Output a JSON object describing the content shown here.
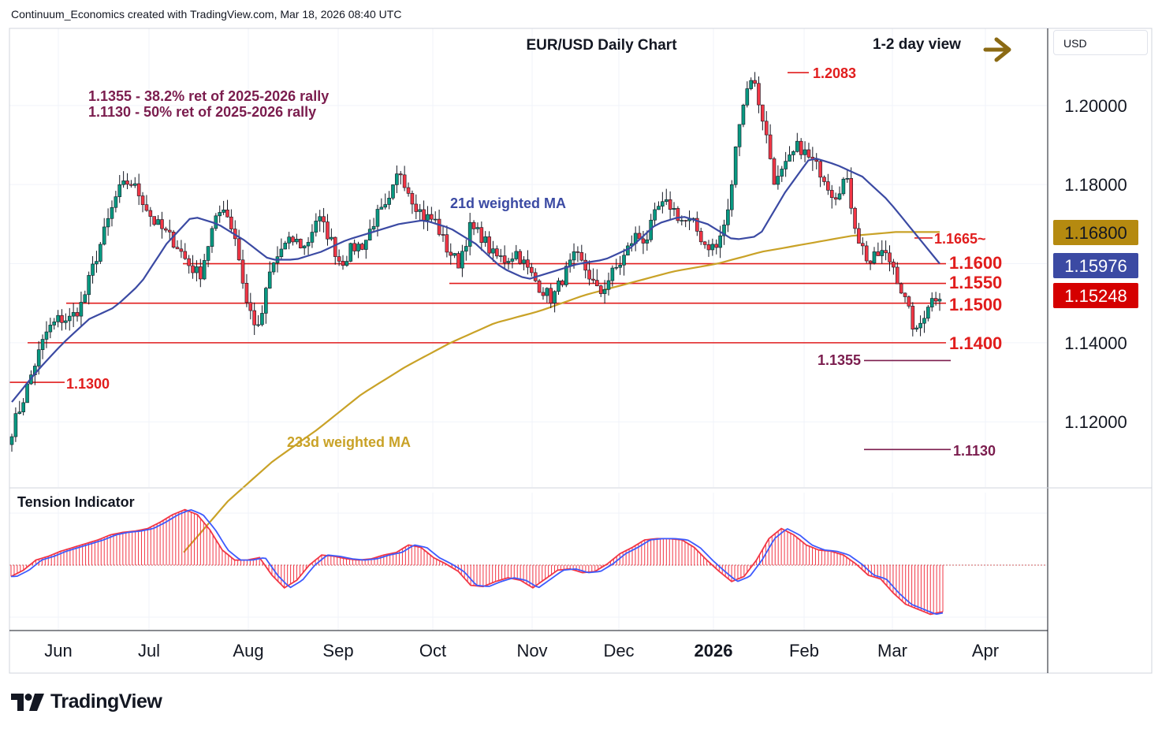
{
  "header": {
    "attribution": "Continuum_Economics created with TradingView.com, Mar 18, 2026 08:40 UTC"
  },
  "brand": {
    "logo_text": "TradingView"
  },
  "price_axis": {
    "currency": "USD"
  },
  "colors": {
    "up_candle": "#089981",
    "down_candle": "#f23645",
    "ma21": "#3b4aa3",
    "ma233": "#c9a227",
    "level_line": "#e11d1d",
    "fib_line": "#7b1d4e",
    "annotation": "#7b1d4e",
    "current_price_bg": "#d50000",
    "ma233_label_bg": "#b58a10",
    "ma21_label_bg": "#3b4aa3",
    "arrow": "#8b6a14",
    "tension_fill": "#f23645",
    "tension_line": "#3d5afe"
  },
  "icons": {
    "trend_arrow": "right-arrow-icon"
  },
  "chart_data": [
    {
      "type": "candlestick",
      "title": "EUR/USD Daily Chart",
      "subtitle": "1-2 day view",
      "x_tick_labels": [
        "Jun",
        "Jul",
        "Aug",
        "Sep",
        "Oct",
        "Nov",
        "Dec",
        "2026",
        "Feb",
        "Mar",
        "Apr"
      ],
      "y_tick_labels": [
        "1.20000",
        "1.18000",
        "1.14000",
        "1.12000"
      ],
      "y_ticks": [
        1.2,
        1.18,
        1.14,
        1.12
      ],
      "ylim": [
        1.1035,
        1.2195
      ],
      "grid": true,
      "price_labels": [
        {
          "text": "1.16800",
          "value": 1.168,
          "kind": "ma233"
        },
        {
          "text": "1.15976",
          "value": 1.15976,
          "kind": "ma21"
        },
        {
          "text": "1.15248",
          "value": 1.15248,
          "kind": "last"
        }
      ],
      "level_labels": [
        {
          "text": "1.1600",
          "value": 1.16
        },
        {
          "text": "1.1550",
          "value": 1.155
        },
        {
          "text": "1.1500",
          "value": 1.15
        },
        {
          "text": "1.1400",
          "value": 1.14
        },
        {
          "text": "1.1300",
          "value": 1.13
        },
        {
          "text": "1.2083",
          "value": 1.2083
        },
        {
          "text": "1.1665~",
          "value": 1.1665
        }
      ],
      "fib_labels": [
        {
          "text": "1.1355",
          "value": 1.1355
        },
        {
          "text": "1.1130",
          "value": 1.113
        }
      ],
      "annotations": [
        "1.1355 - 38.2% ret of 2025-2026 rally",
        "1.1130 - 50% ret of 2025-2026 rally"
      ],
      "series_labels": {
        "ma21": "21d weighted MA",
        "ma233": "233d weighted MA"
      },
      "anchors": [
        [
          1.118,
          1.126,
          1.135,
          1.143,
          1.146,
          1.146,
          1.15,
          1.16,
          1.169,
          1.178,
          1.181,
          1.177,
          1.171,
          1.168,
          1.165,
          1.16,
          1.157,
          1.168,
          1.175,
          1.167,
          1.15,
          1.143,
          1.158,
          1.164,
          1.166,
          1.164,
          1.172,
          1.167,
          1.16,
          1.164,
          1.165,
          1.172,
          1.174,
          1.184,
          1.177,
          1.172,
          1.171,
          1.164,
          1.16,
          1.169,
          1.167,
          1.162,
          1.161,
          1.163,
          1.158,
          1.154,
          1.151,
          1.157,
          1.162,
          1.158,
          1.152,
          1.157,
          1.161,
          1.167,
          1.166,
          1.174,
          1.175,
          1.171,
          1.17,
          1.165,
          1.164,
          1.173,
          1.198,
          1.208,
          1.196,
          1.18,
          1.185,
          1.19,
          1.186,
          1.183,
          1.177,
          1.182,
          1.167,
          1.16,
          1.163,
          1.16,
          1.151,
          1.142,
          1.15,
          1.1525
        ]
      ],
      "ma21_anchors": [
        1.125,
        1.133,
        1.14,
        1.146,
        1.149,
        1.155,
        1.165,
        1.172,
        1.17,
        1.166,
        1.161,
        1.161,
        1.163,
        1.166,
        1.168,
        1.17,
        1.171,
        1.169,
        1.165,
        1.159,
        1.156,
        1.158,
        1.16,
        1.161,
        1.164,
        1.17,
        1.172,
        1.17,
        1.166,
        1.167,
        1.178,
        1.187,
        1.185,
        1.182,
        1.176,
        1.168,
        1.16
      ],
      "ma233_anchors": [
        1.087,
        1.1,
        1.11,
        1.118,
        1.127,
        1.134,
        1.14,
        1.145,
        1.148,
        1.152,
        1.155,
        1.158,
        1.16,
        1.163,
        1.165,
        1.167,
        1.168,
        1.168
      ]
    },
    {
      "type": "bar",
      "title": "Tension Indicator",
      "values": [
        -0.45,
        -0.2,
        0.2,
        0.35,
        0.55,
        0.7,
        0.85,
        1.0,
        1.2,
        1.3,
        1.35,
        1.45,
        1.7,
        2.0,
        2.2,
        2.0,
        1.4,
        0.6,
        0.2,
        0.2,
        0.3,
        -0.4,
        -0.9,
        -0.6,
        0.0,
        0.4,
        0.35,
        0.25,
        0.2,
        0.25,
        0.4,
        0.5,
        0.8,
        0.7,
        0.3,
        0.05,
        -0.25,
        -0.8,
        -0.85,
        -0.65,
        -0.5,
        -0.6,
        -0.9,
        -0.55,
        -0.2,
        -0.15,
        -0.3,
        -0.25,
        0.05,
        0.45,
        0.7,
        1.0,
        1.05,
        1.05,
        1.0,
        0.7,
        0.2,
        -0.25,
        -0.65,
        -0.45,
        0.2,
        1.05,
        1.45,
        1.2,
        0.8,
        0.6,
        0.55,
        0.4,
        0.05,
        -0.4,
        -0.55,
        -1.1,
        -1.55,
        -1.75,
        -1.95,
        -1.85
      ],
      "ylim": [
        -2.5,
        2.5
      ]
    }
  ]
}
